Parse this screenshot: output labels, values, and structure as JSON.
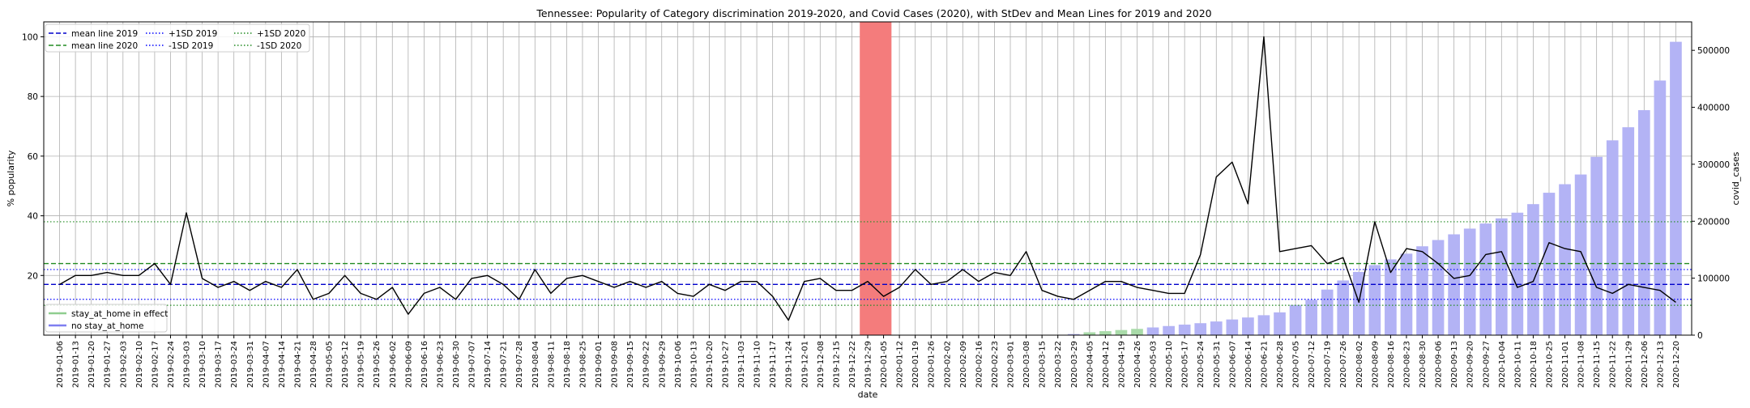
{
  "chart_data": {
    "type": "bar+line",
    "title": "Tennessee: Popularity of Category discrimination 2019-2020, and Covid Cases (2020), with StDev and Mean Lines for 2019 and 2020",
    "xlabel": "date",
    "ylabel_left": "% popularity",
    "ylabel_right": "covid_cases",
    "ylim_left": [
      0,
      105
    ],
    "ylim_right": [
      0,
      550000
    ],
    "yticks_left": [
      20,
      40,
      60,
      80,
      100
    ],
    "yticks_right": [
      0,
      100000,
      200000,
      300000,
      400000,
      500000
    ],
    "ytick_labels_right": [
      "0",
      "100000",
      "200000",
      "300000",
      "400000",
      "500000"
    ],
    "grid": true,
    "dates": [
      "2019-01-06",
      "2019-01-13",
      "2019-01-20",
      "2019-01-27",
      "2019-02-03",
      "2019-02-10",
      "2019-02-17",
      "2019-02-24",
      "2019-03-03",
      "2019-03-10",
      "2019-03-17",
      "2019-03-24",
      "2019-03-31",
      "2019-04-07",
      "2019-04-14",
      "2019-04-21",
      "2019-04-28",
      "2019-05-05",
      "2019-05-12",
      "2019-05-19",
      "2019-05-26",
      "2019-06-02",
      "2019-06-09",
      "2019-06-16",
      "2019-06-23",
      "2019-06-30",
      "2019-07-07",
      "2019-07-14",
      "2019-07-21",
      "2019-07-28",
      "2019-08-04",
      "2019-08-11",
      "2019-08-18",
      "2019-08-25",
      "2019-09-01",
      "2019-09-08",
      "2019-09-15",
      "2019-09-22",
      "2019-09-29",
      "2019-10-06",
      "2019-10-13",
      "2019-10-20",
      "2019-10-27",
      "2019-11-03",
      "2019-11-10",
      "2019-11-17",
      "2019-11-24",
      "2019-12-01",
      "2019-12-08",
      "2019-12-15",
      "2019-12-22",
      "2019-12-29",
      "2020-01-05",
      "2020-01-12",
      "2020-01-19",
      "2020-01-26",
      "2020-02-02",
      "2020-02-09",
      "2020-02-16",
      "2020-02-23",
      "2020-03-01",
      "2020-03-08",
      "2020-03-15",
      "2020-03-22",
      "2020-03-29",
      "2020-04-05",
      "2020-04-12",
      "2020-04-19",
      "2020-04-26",
      "2020-05-03",
      "2020-05-10",
      "2020-05-17",
      "2020-05-24",
      "2020-05-31",
      "2020-06-07",
      "2020-06-14",
      "2020-06-21",
      "2020-06-28",
      "2020-07-05",
      "2020-07-12",
      "2020-07-19",
      "2020-07-26",
      "2020-08-02",
      "2020-08-09",
      "2020-08-16",
      "2020-08-23",
      "2020-08-30",
      "2020-09-06",
      "2020-09-13",
      "2020-09-20",
      "2020-09-27",
      "2020-10-04",
      "2020-10-11",
      "2020-10-18",
      "2020-10-25",
      "2020-11-01",
      "2020-11-08",
      "2020-11-15",
      "2020-11-22",
      "2020-11-29",
      "2020-12-06",
      "2020-12-13",
      "2020-12-20"
    ],
    "popularity": [
      17,
      20,
      20,
      21,
      20,
      20,
      24,
      17,
      41,
      19,
      16,
      18,
      15,
      18,
      16,
      22,
      12,
      14,
      20,
      14,
      12,
      16,
      7,
      14,
      16,
      12,
      19,
      20,
      17,
      12,
      22,
      14,
      19,
      20,
      18,
      16,
      18,
      16,
      18,
      14,
      13,
      17,
      15,
      18,
      18,
      13,
      5,
      18,
      19,
      15,
      15,
      18,
      13,
      16,
      22,
      17,
      18,
      22,
      18,
      21,
      20,
      28,
      15,
      13,
      12,
      15,
      18,
      18,
      16,
      15,
      14,
      14,
      27,
      53,
      58,
      44,
      100,
      28,
      29,
      30,
      24,
      26,
      11,
      38,
      21,
      29,
      28,
      24,
      19,
      20,
      27,
      28,
      16,
      18,
      31,
      29,
      28,
      16,
      14,
      17,
      16,
      15,
      11
    ],
    "popularity_series_name": "popularity",
    "covid_cases": [
      0,
      0,
      0,
      0,
      0,
      0,
      0,
      0,
      0,
      0,
      0,
      0,
      0,
      0,
      0,
      0,
      0,
      0,
      0,
      0,
      0,
      0,
      0,
      0,
      0,
      0,
      0,
      0,
      0,
      0,
      0,
      0,
      0,
      0,
      0,
      0,
      0,
      0,
      0,
      0,
      0,
      0,
      0,
      0,
      0,
      0,
      0,
      0,
      0,
      0,
      0,
      0,
      0,
      0,
      0,
      0,
      0,
      0,
      0,
      0,
      0,
      0,
      0,
      0,
      2000,
      5000,
      7000,
      9000,
      11000,
      13500,
      16000,
      18500,
      21000,
      24000,
      27500,
      31000,
      35000,
      40000,
      53000,
      62000,
      80000,
      96000,
      111000,
      123000,
      133000,
      143000,
      156000,
      167000,
      177000,
      187000,
      196000,
      205000,
      215000,
      230000,
      250000,
      265000,
      282000,
      313000,
      342000,
      365000,
      395000,
      447000,
      515000
    ],
    "stay_at_home_dates": [
      "2020-04-05",
      "2020-04-12",
      "2020-04-19",
      "2020-04-26"
    ],
    "highlight_span": [
      "2019-12-29",
      "2020-01-05"
    ],
    "mean_2019": 17,
    "plus1sd_2019": 22,
    "minus1sd_2019": 12,
    "mean_2020": 24,
    "plus1sd_2020": 38,
    "minus1sd_2020": 10,
    "legend_top": [
      {
        "label": "mean line 2019",
        "color": "#0000cc",
        "dash": "6,3"
      },
      {
        "label": "mean line 2020",
        "color": "#228b22",
        "dash": "6,3"
      },
      {
        "label": "+1SD 2019",
        "color": "#0000ff",
        "dash": "1.5,2.5"
      },
      {
        "label": "-1SD 2019",
        "color": "#0000ff",
        "dash": "1.5,2.5"
      },
      {
        "label": "+1SD 2020",
        "color": "#228b22",
        "dash": "1.5,2.5"
      },
      {
        "label": "-1SD 2020",
        "color": "#228b22",
        "dash": "1.5,2.5"
      }
    ],
    "legend_bottom": [
      {
        "label": "stay_at_home in effect",
        "color": "#8fce8f"
      },
      {
        "label": "no stay_at_home",
        "color": "#7f7ff0"
      }
    ],
    "colors": {
      "popularity_line": "#000000",
      "bar_default": "#b3b3f5",
      "bar_stay_at_home": "#a9dba9",
      "highlight": "#f47c7c",
      "grid": "#b0b0b0"
    }
  }
}
